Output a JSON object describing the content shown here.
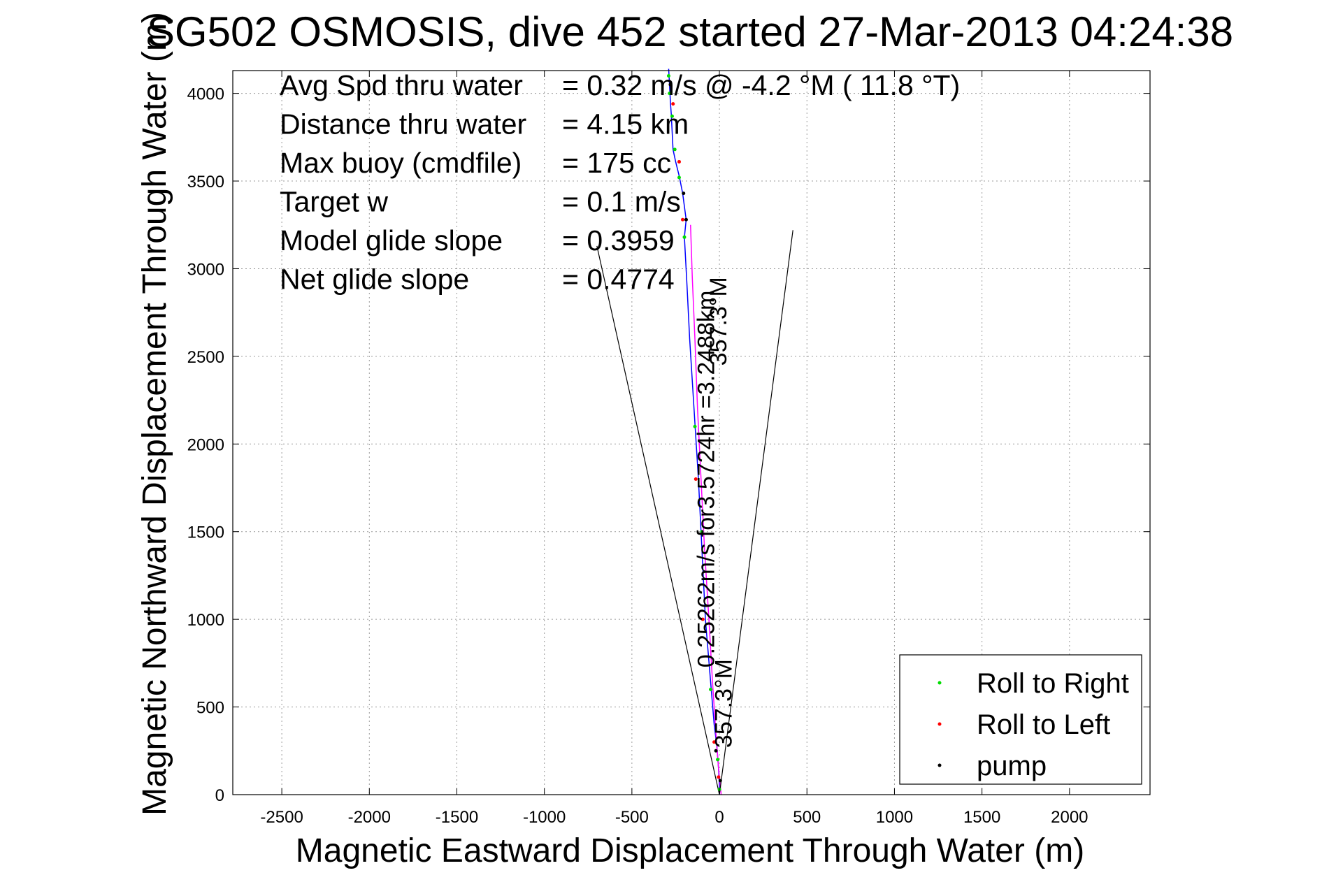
{
  "chart_data": {
    "type": "line",
    "title": "SG502 OSMOSIS, dive 452 started 27-Mar-2013 04:24:38",
    "xlabel": "Magnetic Eastward Displacement Through Water (m)",
    "ylabel": "Magnetic Northward Displacement Through Water (m)",
    "xlim": [
      -2780,
      2460
    ],
    "ylim": [
      0,
      4130
    ],
    "xticks": [
      -2500,
      -2000,
      -1500,
      -1000,
      -500,
      0,
      500,
      1000,
      1500,
      2000
    ],
    "yticks": [
      0,
      500,
      1000,
      1500,
      2000,
      2500,
      3000,
      3500,
      4000
    ],
    "grid": true,
    "legend_position": "bottom-right",
    "stats": [
      {
        "label": "Avg Spd thru water",
        "value": "=  0.32 m/s @  -4.2 °M ( 11.8 °T)"
      },
      {
        "label": "Distance thru water",
        "value": "=  4.15 km"
      },
      {
        "label": "Max buoy (cmdfile)",
        "value": "= 175 cc"
      },
      {
        "label": "Target w",
        "value": "= 0.1 m/s"
      },
      {
        "label": "Model glide slope",
        "value": "= 0.3959"
      },
      {
        "label": "Net glide slope",
        "value": "= 0.4774"
      }
    ],
    "annotations": [
      {
        "text": "357.3°M",
        "x": 40,
        "y": 2700,
        "rotation": -90
      },
      {
        "text": "0.25262m/s for3.5724hr =3.2488km",
        "x": -30,
        "y": 1800,
        "rotation": -90
      },
      {
        "text": "357.3°M",
        "x": 70,
        "y": 520,
        "rotation": -90
      }
    ],
    "series": [
      {
        "name": "track",
        "color": "#0000ff",
        "style": "line",
        "x": [
          0,
          0,
          -5,
          -15,
          -30,
          -55,
          -80,
          -100,
          -120,
          -145,
          -170,
          -185,
          -200,
          -190,
          -210,
          -230,
          -250,
          -265,
          -270,
          -275,
          -280,
          -285,
          -290
        ],
        "y": [
          0,
          50,
          150,
          280,
          400,
          700,
          1000,
          1400,
          1800,
          2200,
          2600,
          2900,
          3180,
          3280,
          3430,
          3530,
          3610,
          3680,
          3780,
          3880,
          3950,
          4050,
          4140
        ]
      },
      {
        "name": "heading-guide",
        "color": "#ff00ff",
        "style": "line",
        "x": [
          10,
          -5,
          -20,
          -40,
          -60,
          -85,
          -105,
          -125,
          -140,
          -155,
          -165
        ],
        "y": [
          0,
          150,
          350,
          650,
          1000,
          1400,
          1800,
          2200,
          2600,
          2950,
          3250
        ]
      },
      {
        "name": "glide-cone-left",
        "color": "#000000",
        "style": "line",
        "x": [
          0,
          -700
        ],
        "y": [
          0,
          3130
        ]
      },
      {
        "name": "glide-cone-right",
        "color": "#000000",
        "style": "line",
        "x": [
          0,
          420
        ],
        "y": [
          0,
          3220
        ]
      },
      {
        "name": "Roll to Right",
        "color": "#00dd00",
        "style": "marker",
        "x": [
          0,
          -10,
          -50,
          -100,
          -140,
          -200,
          -230,
          -255,
          -270,
          -285,
          -290
        ],
        "y": [
          30,
          200,
          600,
          1500,
          2100,
          3180,
          3520,
          3680,
          3870,
          4000,
          4100
        ]
      },
      {
        "name": "Roll to Left",
        "color": "#ff0000",
        "style": "marker",
        "x": [
          -5,
          -30,
          -95,
          -135,
          -210,
          -230,
          -265
        ],
        "y": [
          100,
          300,
          1000,
          1800,
          3280,
          3610,
          3940
        ]
      },
      {
        "name": "pump",
        "color": "#000000",
        "style": "marker",
        "x": [
          5,
          -20,
          -190,
          -205,
          -280
        ],
        "y": [
          80,
          250,
          3280,
          3430,
          4050
        ]
      }
    ],
    "legend": [
      "Roll to Right",
      "Roll to Left",
      "pump"
    ]
  }
}
